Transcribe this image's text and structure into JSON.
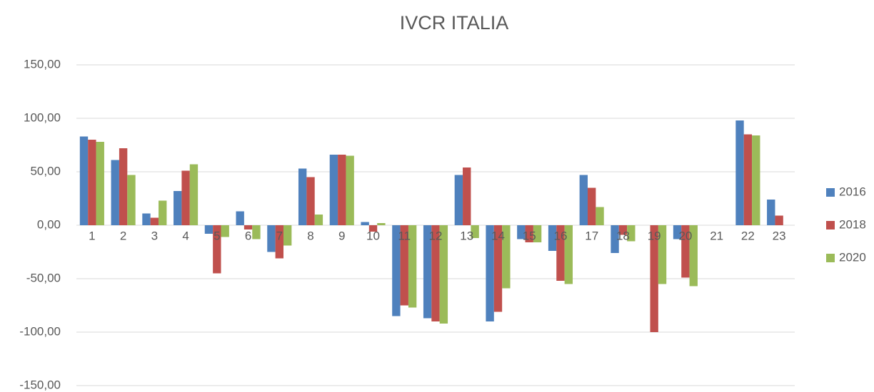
{
  "chart_data": {
    "type": "bar",
    "title": "IVCR ITALIA",
    "categories": [
      "1",
      "2",
      "3",
      "4",
      "5",
      "6",
      "7",
      "8",
      "9",
      "10",
      "11",
      "12",
      "13",
      "14",
      "15",
      "16",
      "17",
      "18",
      "19",
      "20",
      "21",
      "22",
      "23"
    ],
    "series": [
      {
        "name": "2016",
        "color": "#4f81bd",
        "values": [
          83,
          61,
          11,
          32,
          -8,
          13,
          -25,
          53,
          66,
          3,
          -85,
          -87,
          47,
          -90,
          -13,
          -24,
          47,
          -26,
          0,
          -13,
          0,
          98,
          24
        ]
      },
      {
        "name": "2018",
        "color": "#c0504d",
        "values": [
          80,
          72,
          7,
          51,
          -45,
          -4,
          -31,
          45,
          66,
          -6,
          -75,
          -90,
          54,
          -81,
          -16,
          -52,
          35,
          -9,
          -100,
          -49,
          0,
          85,
          9
        ]
      },
      {
        "name": "2020",
        "color": "#9bbb59",
        "values": [
          78,
          47,
          23,
          57,
          -11,
          -13,
          -19,
          10,
          65,
          2,
          -77,
          -92,
          -12,
          -59,
          -16,
          -55,
          17,
          -15,
          -55,
          -57,
          0,
          84,
          0
        ]
      }
    ],
    "ylim": [
      -150,
      150
    ],
    "yticks": [
      {
        "value": -150,
        "label": "-150,00"
      },
      {
        "value": -100,
        "label": "-100,00"
      },
      {
        "value": -50,
        "label": "-50,00"
      },
      {
        "value": 0,
        "label": "0,00"
      },
      {
        "value": 50,
        "label": "50,00"
      },
      {
        "value": 100,
        "label": "100,00"
      },
      {
        "value": 150,
        "label": "150,00"
      }
    ],
    "grid": true,
    "legend": "right"
  }
}
